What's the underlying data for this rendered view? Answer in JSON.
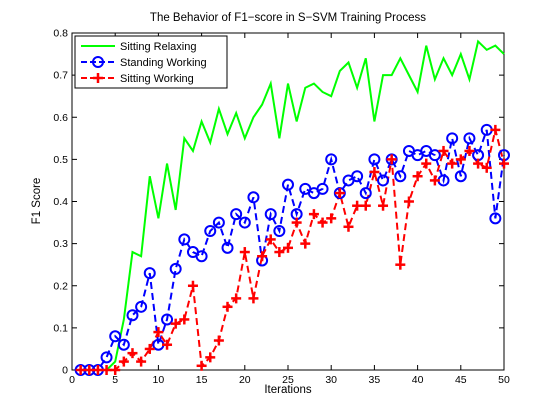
{
  "chart_data": {
    "type": "line",
    "title": "The Behavior of F1−score in S−SVM Training Process",
    "xlabel": "Iterations",
    "ylabel": "F1 Score",
    "xlim": [
      0,
      50
    ],
    "ylim": [
      0,
      0.8
    ],
    "xticks": [
      0,
      5,
      10,
      15,
      20,
      25,
      30,
      35,
      40,
      45,
      50
    ],
    "yticks": [
      0,
      0.1,
      0.2,
      0.3,
      0.4,
      0.5,
      0.6,
      0.7,
      0.8
    ],
    "grid": false,
    "legend_position": "top-left",
    "x": [
      1,
      2,
      3,
      4,
      5,
      6,
      7,
      8,
      9,
      10,
      11,
      12,
      13,
      14,
      15,
      16,
      17,
      18,
      19,
      20,
      21,
      22,
      23,
      24,
      25,
      26,
      27,
      28,
      29,
      30,
      31,
      32,
      33,
      34,
      35,
      36,
      37,
      38,
      39,
      40,
      41,
      42,
      43,
      44,
      45,
      46,
      47,
      48,
      49,
      50
    ],
    "series": [
      {
        "name": "Sitting Relaxing",
        "color": "#00ff00",
        "line_style": "solid",
        "marker": "none",
        "values": [
          0,
          0,
          0,
          0,
          0.02,
          0.12,
          0.28,
          0.27,
          0.46,
          0.36,
          0.49,
          0.38,
          0.55,
          0.52,
          0.59,
          0.54,
          0.62,
          0.56,
          0.61,
          0.55,
          0.6,
          0.63,
          0.68,
          0.55,
          0.68,
          0.59,
          0.67,
          0.68,
          0.66,
          0.65,
          0.71,
          0.73,
          0.67,
          0.74,
          0.59,
          0.7,
          0.7,
          0.74,
          0.7,
          0.66,
          0.77,
          0.69,
          0.74,
          0.7,
          0.75,
          0.69,
          0.78,
          0.76,
          0.77,
          0.75
        ]
      },
      {
        "name": "Standing Working",
        "color": "#0000ff",
        "line_style": "dashed",
        "marker": "circle",
        "values": [
          0,
          0,
          0,
          0.03,
          0.08,
          0.06,
          0.13,
          0.15,
          0.23,
          0.06,
          0.12,
          0.24,
          0.31,
          0.28,
          0.27,
          0.33,
          0.35,
          0.29,
          0.37,
          0.35,
          0.41,
          0.26,
          0.37,
          0.33,
          0.44,
          0.37,
          0.43,
          0.42,
          0.43,
          0.5,
          0.42,
          0.45,
          0.46,
          0.42,
          0.5,
          0.45,
          0.5,
          0.46,
          0.52,
          0.51,
          0.52,
          0.51,
          0.45,
          0.55,
          0.46,
          0.55,
          0.51,
          0.57,
          0.36,
          0.51
        ]
      },
      {
        "name": "Sitting Working",
        "color": "#ff0000",
        "line_style": "dashed",
        "marker": "plus",
        "values": [
          0,
          0,
          0,
          0,
          0,
          0.02,
          0.04,
          0.02,
          0.05,
          0.09,
          0.06,
          0.11,
          0.12,
          0.2,
          0.01,
          0.03,
          0.07,
          0.15,
          0.17,
          0.28,
          0.17,
          0.27,
          0.31,
          0.28,
          0.29,
          0.35,
          0.3,
          0.37,
          0.35,
          0.36,
          0.42,
          0.34,
          0.39,
          0.39,
          0.47,
          0.39,
          0.5,
          0.25,
          0.4,
          0.46,
          0.49,
          0.45,
          0.52,
          0.49,
          0.5,
          0.52,
          0.49,
          0.48,
          0.57,
          0.49
        ]
      }
    ]
  }
}
